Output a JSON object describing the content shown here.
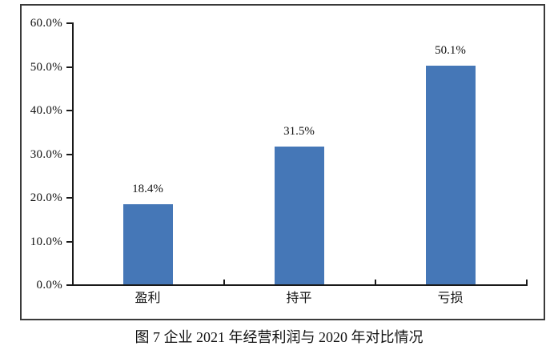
{
  "caption": "图 7  企业 2021 年经营利润与 2020 年对比情况",
  "chart_data": {
    "type": "bar",
    "categories": [
      "盈利",
      "持平",
      "亏损"
    ],
    "values": [
      18.4,
      31.5,
      50.1
    ],
    "value_labels": [
      "18.4%",
      "31.5%",
      "50.1%"
    ],
    "y_tick_labels": [
      "0.0%",
      "10.0%",
      "20.0%",
      "30.0%",
      "40.0%",
      "50.0%",
      "60.0%"
    ],
    "y_tick_values": [
      0,
      10,
      20,
      30,
      40,
      50,
      60
    ],
    "ylim": [
      0,
      60
    ],
    "title": "",
    "xlabel": "",
    "ylabel": "",
    "grid": "off",
    "legend": "none",
    "bar_color": "#4577b7",
    "axis_color": "#1a1a1a"
  }
}
